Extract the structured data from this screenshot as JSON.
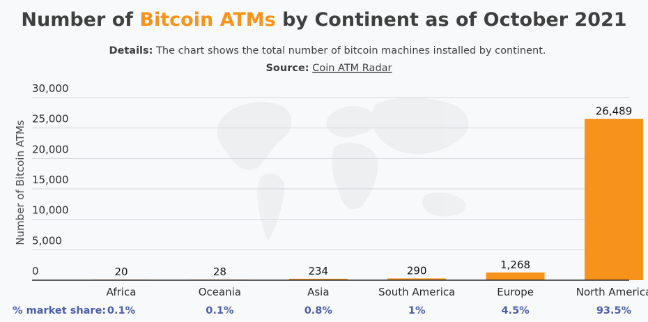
{
  "title": {
    "prefix": "Number of ",
    "highlight": "Bitcoin ATMs",
    "suffix": " by Continent as of October 2021"
  },
  "details": {
    "label": "Details:",
    "text": " The chart shows the total number of bitcoin machines installed by continent."
  },
  "source": {
    "label": "Source:",
    "link_text": "Coin ATM Radar"
  },
  "share_label": "% market share:",
  "colors": {
    "bar": "#f7931a",
    "title_accent": "#f7931a",
    "share_text": "#4a5fa8",
    "background": "#f8f9fa"
  },
  "chart_data": {
    "type": "bar",
    "ylabel": "Number of Bitcoin ATMs",
    "xlabel": "",
    "ylim": [
      0,
      30000
    ],
    "yticks": [
      0,
      5000,
      10000,
      15000,
      20000,
      25000,
      30000
    ],
    "ytick_labels": [
      "0",
      "5,000",
      "10,000",
      "15,000",
      "20,000",
      "25,000",
      "30,000"
    ],
    "grid": true,
    "categories": [
      "Africa",
      "Oceania",
      "Asia",
      "South America",
      "Europe",
      "North America"
    ],
    "values": [
      20,
      28,
      234,
      290,
      1268,
      26489
    ],
    "value_labels": [
      "20",
      "28",
      "234",
      "290",
      "1,268",
      "26,489"
    ],
    "market_share": [
      "0.1%",
      "0.1%",
      "0.8%",
      "1%",
      "4.5%",
      "93.5%"
    ]
  }
}
